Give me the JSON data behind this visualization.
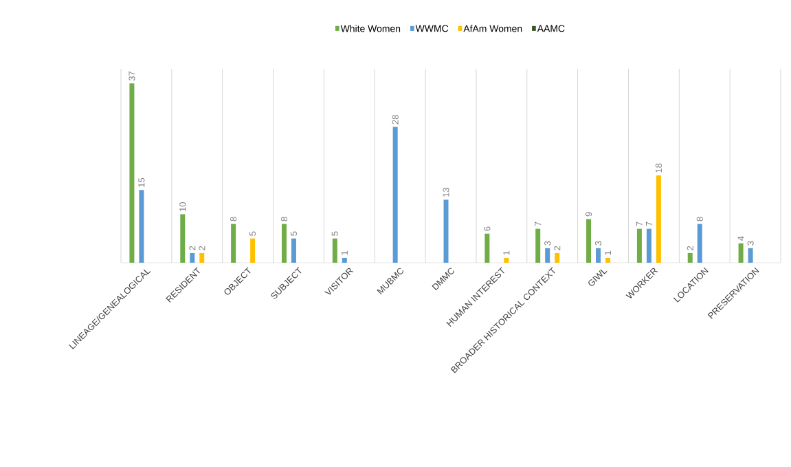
{
  "chart_data": {
    "type": "bar",
    "categories": [
      "LINEAGE/GENEALOGICAL",
      "RESIDENT",
      "OBJECT",
      "SUBJECT",
      "VISITOR",
      "MUBMC",
      "DMMC",
      "HUMAN INTEREST",
      "BROADER HISTORICAL CONTEXT",
      "GIWL",
      "WORKER",
      "LOCATION",
      "PRESERVATION"
    ],
    "series": [
      {
        "name": "White Women",
        "color": "#70ad47",
        "values": [
          37,
          10,
          8,
          8,
          5,
          null,
          null,
          6,
          7,
          9,
          7,
          2,
          4
        ]
      },
      {
        "name": "WWMC",
        "color": "#5b9bd5",
        "values": [
          15,
          2,
          null,
          5,
          1,
          28,
          13,
          null,
          3,
          3,
          7,
          8,
          3
        ]
      },
      {
        "name": "AfAm Women",
        "color": "#ffc000",
        "values": [
          null,
          2,
          5,
          null,
          null,
          null,
          null,
          1,
          2,
          1,
          18,
          null,
          null
        ]
      },
      {
        "name": "AAMC",
        "color": "#375623",
        "values": [
          null,
          null,
          null,
          null,
          null,
          null,
          null,
          null,
          null,
          null,
          null,
          null,
          null
        ]
      }
    ],
    "ylim": [
      0,
      40
    ],
    "tick_labels": "x",
    "data_labels": true,
    "grid": "x",
    "legend": "top"
  }
}
